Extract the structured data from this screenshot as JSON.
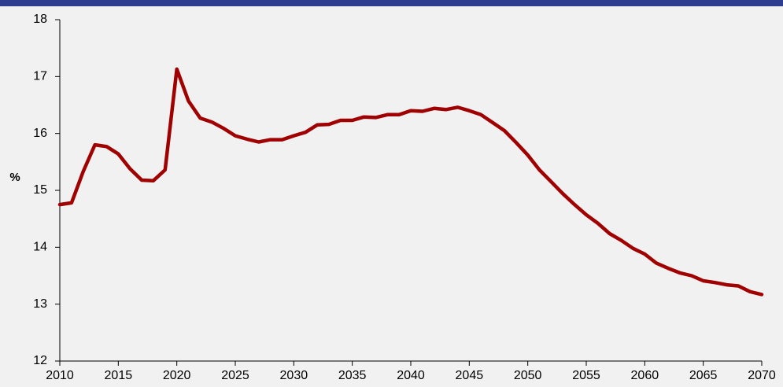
{
  "colors": {
    "topbar": "#2f3d8e",
    "background": "#f1f1f1",
    "line": "#a00000",
    "axis": "#000000"
  },
  "chart_data": {
    "type": "line",
    "title": "",
    "xlabel": "",
    "ylabel": "%",
    "xlim": [
      2010,
      2070
    ],
    "ylim": [
      12,
      18
    ],
    "grid": false,
    "x_ticks": [
      2010,
      2015,
      2020,
      2025,
      2030,
      2035,
      2040,
      2045,
      2050,
      2055,
      2060,
      2065,
      2070
    ],
    "y_ticks": [
      12,
      13,
      14,
      15,
      16,
      17,
      18
    ],
    "series": [
      {
        "color": "#a00000",
        "x": [
          2010,
          2011,
          2012,
          2013,
          2014,
          2015,
          2016,
          2017,
          2018,
          2019,
          2020,
          2021,
          2022,
          2023,
          2024,
          2025,
          2026,
          2027,
          2028,
          2029,
          2030,
          2031,
          2032,
          2033,
          2034,
          2035,
          2036,
          2037,
          2038,
          2039,
          2040,
          2041,
          2042,
          2043,
          2044,
          2045,
          2046,
          2047,
          2048,
          2049,
          2050,
          2051,
          2052,
          2053,
          2054,
          2055,
          2056,
          2057,
          2058,
          2059,
          2060,
          2061,
          2062,
          2063,
          2064,
          2065,
          2066,
          2067,
          2068,
          2069,
          2070
        ],
        "values": [
          14.75,
          14.78,
          15.33,
          15.8,
          15.77,
          15.64,
          15.38,
          15.18,
          15.17,
          15.36,
          17.13,
          16.57,
          16.27,
          16.2,
          16.09,
          15.96,
          15.9,
          15.85,
          15.89,
          15.89,
          15.96,
          16.02,
          16.15,
          16.16,
          16.23,
          16.23,
          16.29,
          16.28,
          16.33,
          16.33,
          16.4,
          16.39,
          16.44,
          16.42,
          16.46,
          16.4,
          16.33,
          16.19,
          16.05,
          15.84,
          15.62,
          15.36,
          15.15,
          14.94,
          14.75,
          14.57,
          14.42,
          14.24,
          14.12,
          13.98,
          13.88,
          13.72,
          13.63,
          13.55,
          13.5,
          13.41,
          13.38,
          13.34,
          13.32,
          13.22,
          13.17
        ]
      }
    ]
  }
}
